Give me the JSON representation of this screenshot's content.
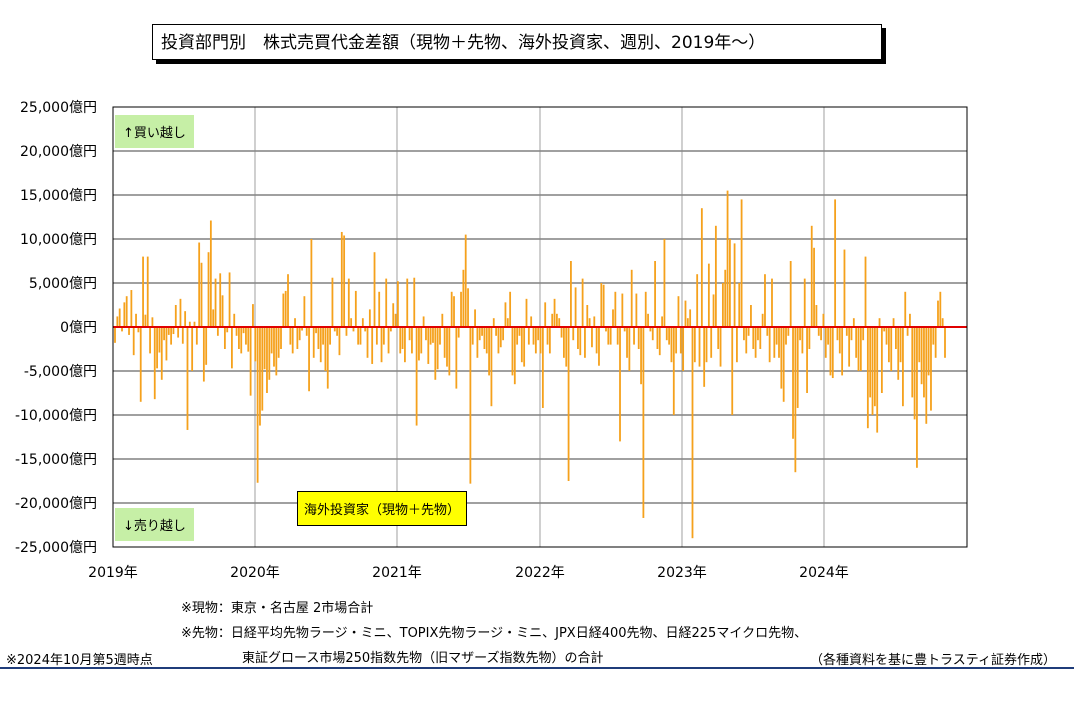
{
  "title": "投資部門別　株式売買代金差額（現物＋先物、海外投資家、週別、2019年～）",
  "colors": {
    "bar": "#f5a11c",
    "zero_line": "#e00000",
    "grid": "#000000",
    "legend_bg": "#ffff00",
    "badge_bg": "#c6efa6"
  },
  "annotations": {
    "buy": "↑買い越し",
    "sell": "↓売り越し"
  },
  "notes": {
    "spot": "※現物：東京・名古屋 2市場合計",
    "futures_1": "※先物：日経平均先物ラージ・ミニ、TOPIX先物ラージ・ミニ、JPX日経400先物、日経225マイクロ先物、",
    "futures_2": "東証グロース市場250指数先物（旧マザーズ指数先物）の合計",
    "as_of": "※2024年10月第5週時点",
    "source": "（各種資料を基に豊トラスティ証券作成）"
  },
  "chart_data": {
    "type": "bar",
    "title": "投資部門別　株式売買代金差額（現物＋先物、海外投資家、週別、2019年～）",
    "legend": "海外投資家（現物＋先物）",
    "y_ticks": [
      "25,000億円",
      "20,000億円",
      "15,000億円",
      "10,000億円",
      "5,000億円",
      "0億円",
      "-5,000億円",
      "-10,000億円",
      "-15,000億円",
      "-20,000億円",
      "-25,000億円"
    ],
    "x_ticks": [
      "2019年",
      "2020年",
      "2021年",
      "2022年",
      "2023年",
      "2024年"
    ],
    "ylim": [
      -25000,
      25000
    ],
    "unit": "億円",
    "start": "2019-01",
    "end": "2024-10",
    "values": [
      -1800,
      1200,
      2100,
      -500,
      2800,
      3500,
      -900,
      4200,
      -3200,
      1500,
      -600,
      -8500,
      8000,
      1400,
      8000,
      -3000,
      1100,
      -8200,
      -4700,
      -2900,
      -6000,
      -1500,
      -3800,
      -900,
      -2000,
      -800,
      2500,
      -1200,
      3200,
      -1900,
      1800,
      -11700,
      600,
      -5000,
      600,
      -2000,
      9600,
      7300,
      -6200,
      -4300,
      8500,
      12100,
      2000,
      5500,
      -1000,
      6100,
      3600,
      -2500,
      -600,
      6200,
      -4700,
      1500,
      -1000,
      -2500,
      -3000,
      -700,
      -2000,
      -2800,
      -7800,
      2600,
      -3900,
      -17700,
      -11200,
      -9500,
      -4800,
      -7500,
      -6000,
      -3000,
      -4500,
      -5500,
      -3500,
      -2500,
      3800,
      4100,
      6000,
      -2000,
      -3000,
      1000,
      -2500,
      -1500,
      -400,
      3500,
      -1000,
      -7300,
      10000,
      -3500,
      -700,
      -2500,
      -4000,
      -2000,
      -5000,
      -7000,
      -2000,
      5600,
      -500,
      -1000,
      -3200,
      10800,
      10400,
      -1000,
      5500,
      1000,
      -500,
      4100,
      -2000,
      -2000,
      1000,
      -500,
      -3500,
      2000,
      -4200,
      8500,
      -2000,
      4000,
      -4000,
      -2000,
      5500,
      -3000,
      -500,
      2700,
      1500,
      5200,
      -3000,
      -2500,
      -4000,
      5500,
      -1500,
      -3000,
      5600,
      -11200,
      -3800,
      -3000,
      1200,
      -1500,
      -4200,
      -2000,
      -1800,
      -6000,
      -4800,
      -2000,
      1500,
      -3500,
      -4500,
      -5500,
      4000,
      3500,
      -7000,
      -1200,
      4000,
      6500,
      10500,
      4400,
      -17800,
      -2000,
      2000,
      -3500,
      -1500,
      -1000,
      -2500,
      -3000,
      -5500,
      -9000,
      1000,
      -1000,
      -3000,
      -2300,
      -1500,
      2800,
      1000,
      4000,
      -5500,
      -6500,
      -2000,
      -1000,
      -4000,
      -4500,
      3200,
      -2000,
      1200,
      -2000,
      -3000,
      -1500,
      -3000,
      -9200,
      2800,
      -2000,
      -3000,
      1500,
      3200,
      1500,
      1000,
      -1200,
      -3500,
      -4500,
      -17500,
      7500,
      -1500,
      4500,
      -2500,
      -3200,
      5500,
      -3500,
      2500,
      1000,
      -2300,
      1200,
      -3000,
      -4400,
      5000,
      4800,
      -500,
      -2000,
      -2000,
      2000,
      4000,
      -2000,
      -13000,
      3800,
      -500,
      -3500,
      -5000,
      6500,
      -2000,
      3800,
      -2500,
      -6500,
      -21700,
      4000,
      1500,
      -500,
      -1500,
      7500,
      -2500,
      -3200,
      1200,
      10000,
      -1500,
      -2000,
      -4000,
      -10000,
      -3000,
      3500,
      -3000,
      -5000,
      3000,
      1000,
      2000,
      -24000,
      -4000,
      6000,
      -4500,
      13500,
      -6800,
      -4000,
      7200,
      -3500,
      3700,
      11500,
      -2500,
      -4500,
      5000,
      6500,
      15500,
      10000,
      -10000,
      9500,
      -4000,
      5000,
      14500,
      -1500,
      -3000,
      -1000,
      2500,
      -2500,
      -3500,
      -1500,
      -2500,
      1500,
      6000,
      -1000,
      -4000,
      5500,
      -3500,
      -2000,
      -3500,
      -7000,
      -8500,
      -2000,
      -1000,
      7500,
      -12700,
      -16500,
      -9200,
      -1500,
      -3000,
      5500,
      -7500,
      -2500,
      11500,
      9000,
      2500,
      -1000,
      -1500,
      1500,
      -3500,
      -2000,
      -5500,
      -5800,
      14500,
      -1500,
      -3000,
      -5500,
      8800,
      -1000,
      -4500,
      -1500,
      1000,
      -3500,
      -5000,
      -5000,
      -1500,
      8000,
      -11500,
      -8000,
      -10000,
      -9000,
      -12000,
      1000,
      -7500,
      -500,
      -2000,
      -4000,
      -5000,
      1000,
      -2500,
      -6000,
      -4000,
      -9000,
      4000,
      -1000,
      1500,
      -8000,
      -10500,
      -16000,
      -4000,
      -6500,
      -8000,
      -11000,
      -5500,
      -9500,
      -2000,
      -3500,
      3000,
      4000,
      1000,
      -3500
    ]
  }
}
